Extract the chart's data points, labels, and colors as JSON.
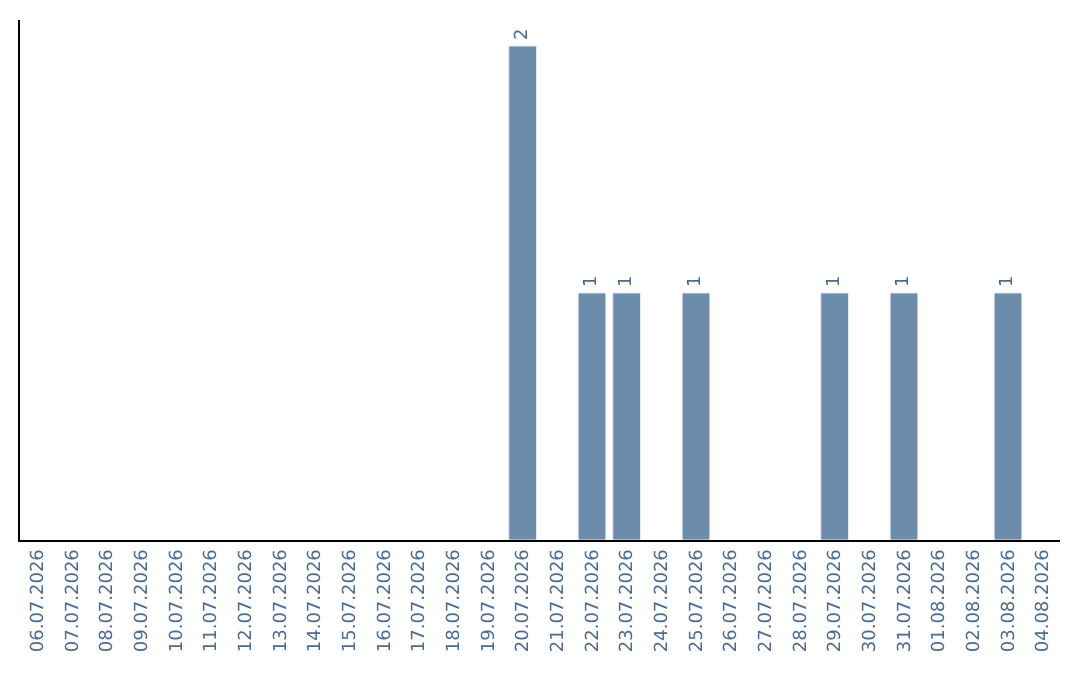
{
  "chart_data": {
    "type": "bar",
    "categories": [
      "06.07.2026",
      "07.07.2026",
      "08.07.2026",
      "09.07.2026",
      "10.07.2026",
      "11.07.2026",
      "12.07.2026",
      "13.07.2026",
      "14.07.2026",
      "15.07.2026",
      "16.07.2026",
      "17.07.2026",
      "18.07.2026",
      "19.07.2026",
      "20.07.2026",
      "21.07.2026",
      "22.07.2026",
      "23.07.2026",
      "24.07.2026",
      "25.07.2026",
      "26.07.2026",
      "27.07.2026",
      "28.07.2026",
      "29.07.2026",
      "30.07.2026",
      "31.07.2026",
      "01.08.2026",
      "02.08.2026",
      "03.08.2026",
      "04.08.2026"
    ],
    "values": [
      null,
      null,
      null,
      null,
      null,
      null,
      null,
      null,
      null,
      null,
      null,
      null,
      null,
      null,
      2,
      null,
      1,
      1,
      null,
      1,
      null,
      null,
      null,
      1,
      null,
      1,
      null,
      null,
      1,
      null
    ],
    "data_labels": true,
    "color": "#6b8cab",
    "tick_labels": "x",
    "legend": false
  }
}
